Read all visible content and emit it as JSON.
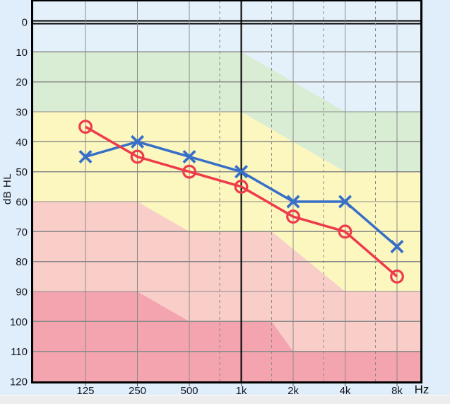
{
  "chart_data": {
    "type": "line",
    "chart_kind": "audiogram",
    "title": "",
    "x_axis": {
      "unit_label": "Hz",
      "scale": "log2-octaves",
      "tick_frequencies": [
        125,
        250,
        500,
        1000,
        2000,
        4000,
        8000
      ],
      "tick_labels": [
        "125",
        "250",
        "500",
        "1k",
        "2k",
        "4k",
        "8k"
      ],
      "minor_dashed_frequencies": [
        750,
        1500,
        3000,
        6000
      ],
      "range_hz": [
        60,
        11300
      ],
      "emphasized_frequency": 1000
    },
    "y_axis": {
      "label": "dB HL",
      "tick_values": [
        0,
        10,
        20,
        30,
        40,
        50,
        60,
        70,
        80,
        90,
        100,
        110,
        120
      ],
      "tick_labels": [
        "0",
        "10",
        "20",
        "30",
        "40",
        "50",
        "60",
        "70",
        "80",
        "90",
        "100",
        "110",
        "120"
      ],
      "range_db": [
        -7.3,
        120
      ],
      "inverted": true,
      "emphasized_line_db": 0,
      "grid": true
    },
    "series": [
      {
        "name": "left-ear-air-conduction",
        "marker": "x",
        "color": "#376fc8",
        "points": [
          {
            "hz": 125,
            "db": 45
          },
          {
            "hz": 250,
            "db": 40
          },
          {
            "hz": 500,
            "db": 45
          },
          {
            "hz": 1000,
            "db": 50
          },
          {
            "hz": 2000,
            "db": 60
          },
          {
            "hz": 4000,
            "db": 60
          },
          {
            "hz": 8000,
            "db": 75
          }
        ]
      },
      {
        "name": "right-ear-air-conduction",
        "marker": "circle",
        "color": "#ee3b4b",
        "points": [
          {
            "hz": 125,
            "db": 35
          },
          {
            "hz": 250,
            "db": 45
          },
          {
            "hz": 500,
            "db": 50
          },
          {
            "hz": 1000,
            "db": 55
          },
          {
            "hz": 2000,
            "db": 65
          },
          {
            "hz": 4000,
            "db": 70
          },
          {
            "hz": 8000,
            "db": 85
          }
        ]
      }
    ],
    "severity_regions": [
      {
        "name": "normal-band",
        "color": "#e4f1fa",
        "polygon": [
          [
            60,
            -7.4
          ],
          [
            11300,
            -7.4
          ],
          [
            11300,
            30
          ],
          [
            4000,
            30
          ],
          [
            1000,
            10
          ],
          [
            60,
            10
          ]
        ]
      },
      {
        "name": "mild-band",
        "color": "#d9ecd4",
        "polygon": [
          [
            60,
            10
          ],
          [
            1000,
            10
          ],
          [
            4000,
            30
          ],
          [
            11300,
            30
          ],
          [
            11300,
            50
          ],
          [
            4000,
            50
          ],
          [
            1000,
            30
          ],
          [
            60,
            30
          ]
        ]
      },
      {
        "name": "moderate-band",
        "color": "#fcf7be",
        "polygon": [
          [
            60,
            30
          ],
          [
            1000,
            30
          ],
          [
            4000,
            50
          ],
          [
            11300,
            50
          ],
          [
            11300,
            90
          ],
          [
            4000,
            90
          ],
          [
            1500,
            70
          ],
          [
            500,
            70
          ],
          [
            250,
            60
          ],
          [
            60,
            60
          ]
        ]
      },
      {
        "name": "severe-band",
        "color": "#f9cec9",
        "polygon": [
          [
            60,
            60
          ],
          [
            250,
            60
          ],
          [
            500,
            70
          ],
          [
            1500,
            70
          ],
          [
            4000,
            90
          ],
          [
            11300,
            90
          ],
          [
            11300,
            110
          ],
          [
            2000,
            110
          ],
          [
            1500,
            100
          ],
          [
            500,
            100
          ],
          [
            250,
            90
          ],
          [
            60,
            90
          ]
        ]
      },
      {
        "name": "profound-band",
        "color": "#f4a4af",
        "polygon": [
          [
            60,
            90
          ],
          [
            250,
            90
          ],
          [
            500,
            100
          ],
          [
            1500,
            100
          ],
          [
            2000,
            110
          ],
          [
            11300,
            110
          ],
          [
            11300,
            120
          ],
          [
            60,
            120
          ]
        ]
      }
    ],
    "colors": {
      "axis": "#000000",
      "grid": "#8a8a8a",
      "outer_background": "#dfeefa",
      "bottom_strip": "#ededed"
    }
  }
}
